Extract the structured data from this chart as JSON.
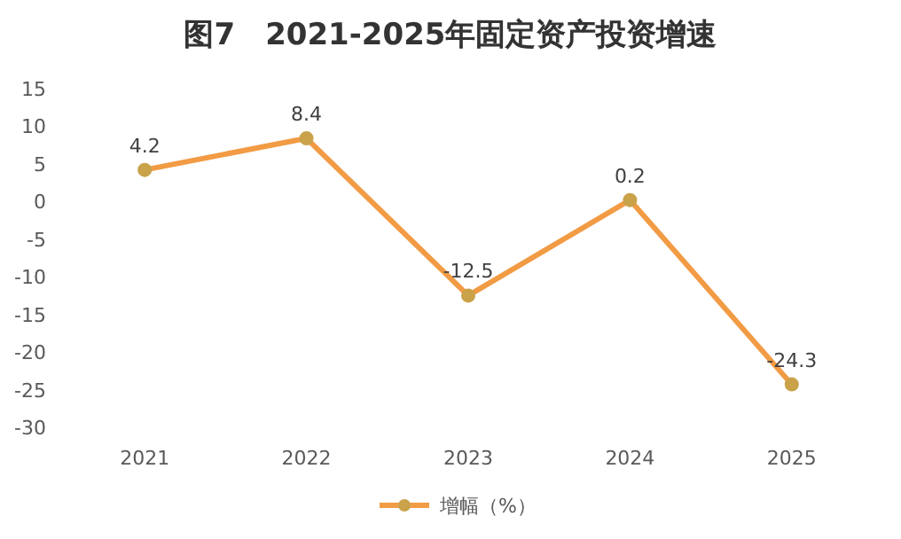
{
  "chart_data": {
    "type": "line",
    "title": "图7　2021-2025年固定资产投资增速",
    "categories": [
      "2021",
      "2022",
      "2023",
      "2024",
      "2025"
    ],
    "series": [
      {
        "name": "增幅（%）",
        "color": "#f29b45",
        "values": [
          4.2,
          8.4,
          -12.5,
          0.2,
          -24.3
        ]
      }
    ],
    "ylim": [
      -30,
      15
    ],
    "yticks": [
      -30,
      -25,
      -20,
      -15,
      -10,
      -5,
      0,
      5,
      10,
      15
    ],
    "data_labels": true,
    "legend": "bottom",
    "marker": "circle",
    "line_style": "solid"
  }
}
